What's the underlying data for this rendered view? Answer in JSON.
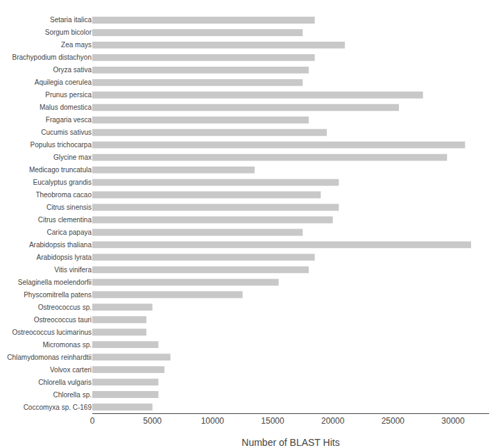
{
  "chart_data": {
    "type": "bar",
    "orientation": "horizontal",
    "categories": [
      "Setaria italica",
      "Sorgum bicolor",
      "Zea mays",
      "Brachypodium distachyon",
      "Oryza sativa",
      "Aquilegia coerulea",
      "Prunus persica",
      "Malus domestica",
      "Fragaria vesca",
      "Cucumis sativus",
      "Populus trichocarpa",
      "Glycine max",
      "Medicago truncatula",
      "Eucalyptus grandis",
      "Theobroma cacao",
      "Citrus sinensis",
      "Citrus clementina",
      "Carica papaya",
      "Arabidopsis thaliana",
      "Arabidopsis lyrata",
      "Vitis vinifera",
      "Selaginella moelendorfii",
      "Physcomitrella patens",
      "Ostreococcus sp.",
      "Ostreococcus tauri",
      "Ostreococcus lucimarinus",
      "Micromonas sp.",
      "Chlamydomonas reinhardtii",
      "Volvox carteri",
      "Chlorella vulgaris",
      "Chlorella sp.",
      "Coccomyxa sp. C-169"
    ],
    "values": [
      18500,
      17500,
      21000,
      18500,
      18000,
      17500,
      27500,
      25500,
      18000,
      19500,
      31000,
      29500,
      13500,
      20500,
      19000,
      20500,
      20000,
      17500,
      31500,
      18500,
      18000,
      15500,
      12500,
      5000,
      4500,
      4500,
      5500,
      6500,
      6000,
      5500,
      5500,
      5000
    ],
    "color": "#c8c8c8",
    "xlabel": "Number of BLAST Hits",
    "xlim": [
      0,
      33000
    ],
    "xticks": [
      0,
      5000,
      10000,
      15000,
      20000,
      25000,
      30000
    ],
    "grid": false
  }
}
